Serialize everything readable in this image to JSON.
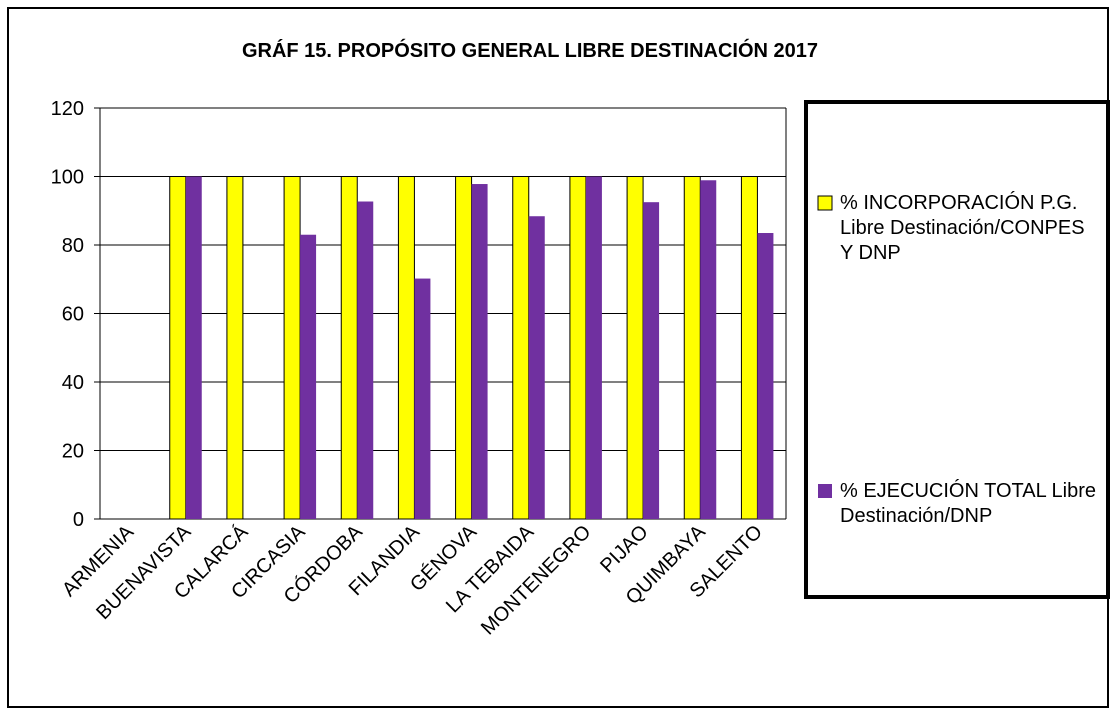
{
  "chart_data": {
    "type": "bar",
    "title": "GRÁF 15. PROPÓSITO GENERAL LIBRE DESTINACIÓN  2017",
    "categories": [
      "ARMENIA",
      "BUENAVISTA",
      "CALARCÁ",
      "CIRCASIA",
      "CÓRDOBA",
      "FILANDIA",
      "GÉNOVA",
      "LA TEBAIDA",
      "MONTENEGRO",
      "PIJAO",
      "QUIMBAYA",
      "SALENTO"
    ],
    "series": [
      {
        "name": "% INCORPORACIÓN P.G. Libre Destinación/CONPES Y DNP",
        "color": "#ffff00",
        "values": [
          null,
          100,
          100,
          100,
          100,
          100,
          100,
          100,
          100,
          100,
          100,
          100
        ]
      },
      {
        "name": "% EJECUCIÓN TOTAL Libre Destinación/DNP",
        "color": "#7030a0",
        "values": [
          null,
          100,
          null,
          83,
          92.7,
          70.2,
          97.8,
          88.4,
          100,
          92.5,
          98.9,
          83.5
        ]
      }
    ],
    "ylim": [
      0,
      120
    ],
    "yticks": [
      0,
      20,
      40,
      60,
      80,
      100,
      120
    ],
    "grid": true
  }
}
